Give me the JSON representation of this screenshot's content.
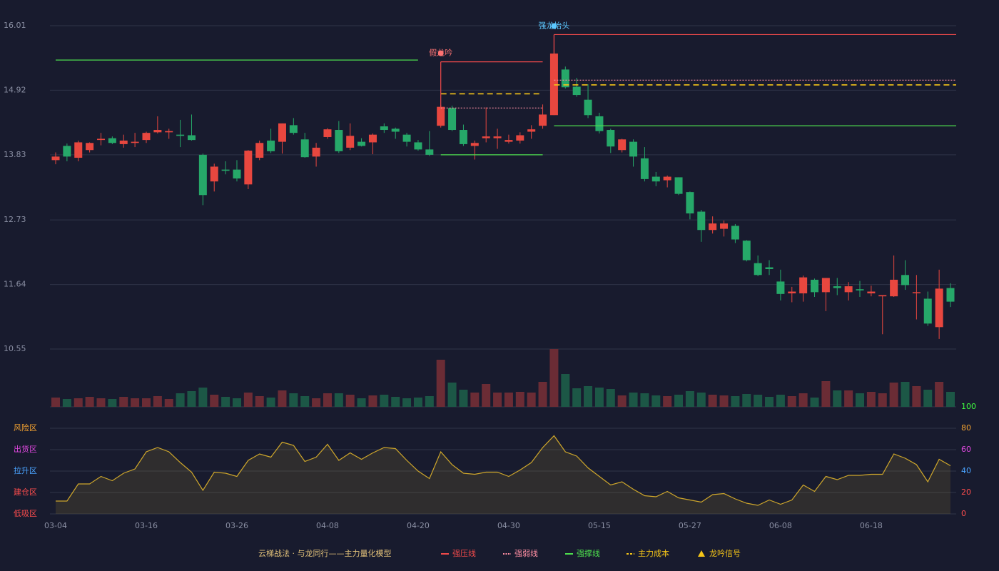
{
  "chart_data": {
    "type": "candlestick",
    "categories": [
      "03-04",
      null,
      null,
      null,
      null,
      null,
      null,
      null,
      "03-16",
      null,
      null,
      null,
      null,
      null,
      null,
      null,
      "03-26",
      null,
      null,
      null,
      null,
      null,
      null,
      null,
      "04-08",
      null,
      null,
      null,
      null,
      null,
      null,
      null,
      "04-20",
      null,
      null,
      null,
      null,
      null,
      null,
      null,
      "04-30",
      null,
      null,
      null,
      null,
      null,
      null,
      null,
      "05-15",
      null,
      null,
      null,
      null,
      null,
      null,
      null,
      "05-27",
      null,
      null,
      null,
      null,
      null,
      null,
      null,
      "06-08",
      null,
      null,
      null,
      null,
      null,
      null,
      null,
      "06-18",
      null,
      null,
      null,
      null,
      null,
      null,
      null
    ],
    "open": [
      13.74,
      13.98,
      13.78,
      13.91,
      14.08,
      14.11,
      14.01,
      14.03,
      14.08,
      14.21,
      14.21,
      14.17,
      14.16,
      13.83,
      13.38,
      13.58,
      13.58,
      13.33,
      13.78,
      14.07,
      14.05,
      14.33,
      14.09,
      13.8,
      14.13,
      14.25,
      13.95,
      14.05,
      14.04,
      14.31,
      14.27,
      14.17,
      14.04,
      13.92,
      14.32,
      14.62,
      14.25,
      13.98,
      14.11,
      14.11,
      14.05,
      14.07,
      14.22,
      14.32,
      14.5,
      15.27,
      14.98,
      14.76,
      14.48,
      14.25,
      13.91,
      14.05,
      13.77,
      13.46,
      13.4,
      13.45,
      13.2,
      12.87,
      12.56,
      12.58,
      12.63,
      12.38,
      12.0,
      11.93,
      11.69,
      11.49,
      11.49,
      11.72,
      11.51,
      11.61,
      11.51,
      11.56,
      11.49,
      11.44,
      11.44,
      11.8,
      11.5,
      11.4,
      10.92,
      11.58
    ],
    "high": [
      13.87,
      14.02,
      14.07,
      14.04,
      14.2,
      14.14,
      14.17,
      14.2,
      14.22,
      14.48,
      14.27,
      14.42,
      14.51,
      13.85,
      13.68,
      13.72,
      13.74,
      13.91,
      14.07,
      14.27,
      14.36,
      14.45,
      14.2,
      14.03,
      14.28,
      14.4,
      14.36,
      14.11,
      14.19,
      14.36,
      14.29,
      14.2,
      14.08,
      14.23,
      14.67,
      14.66,
      14.34,
      14.07,
      14.63,
      14.27,
      14.17,
      14.21,
      14.33,
      14.68,
      15.86,
      15.32,
      15.13,
      15.02,
      14.54,
      14.27,
      14.1,
      14.09,
      13.96,
      13.54,
      13.48,
      13.45,
      13.21,
      12.9,
      12.79,
      12.72,
      12.66,
      12.39,
      12.13,
      12.05,
      11.89,
      11.6,
      11.79,
      11.74,
      11.75,
      11.75,
      11.68,
      11.7,
      11.62,
      11.46,
      12.13,
      12.05,
      11.8,
      11.52,
      11.89,
      11.66
    ],
    "low": [
      13.67,
      13.72,
      13.72,
      13.87,
      13.99,
      14.01,
      13.95,
      13.96,
      14.03,
      14.19,
      14.1,
      13.96,
      14.07,
      12.98,
      13.21,
      13.5,
      13.38,
      13.25,
      13.74,
      13.86,
      13.85,
      14.17,
      13.78,
      13.63,
      14.1,
      13.86,
      13.91,
      13.97,
      13.84,
      14.2,
      14.1,
      13.97,
      13.9,
      13.81,
      14.29,
      14.23,
      13.98,
      13.75,
      14.04,
      13.93,
      14.02,
      14.02,
      14.1,
      14.27,
      14.5,
      14.95,
      14.81,
      14.45,
      14.19,
      13.86,
      13.87,
      13.63,
      13.38,
      13.3,
      13.28,
      13.15,
      12.74,
      12.36,
      12.5,
      12.45,
      12.34,
      12.03,
      11.78,
      11.8,
      11.37,
      11.34,
      11.35,
      11.43,
      11.19,
      11.46,
      11.37,
      11.43,
      11.44,
      10.8,
      11.43,
      11.55,
      11.05,
      10.94,
      10.72,
      11.26
    ],
    "close": [
      13.8,
      13.8,
      14.04,
      14.03,
      14.1,
      14.03,
      14.07,
      14.05,
      14.2,
      14.25,
      14.23,
      14.15,
      14.08,
      13.15,
      13.63,
      13.56,
      13.43,
      13.9,
      14.03,
      13.89,
      14.36,
      14.2,
      13.79,
      13.95,
      14.26,
      13.89,
      14.15,
      13.98,
      14.17,
      14.25,
      14.22,
      14.05,
      13.92,
      13.83,
      14.64,
      14.25,
      14.01,
      14.03,
      14.14,
      14.14,
      14.08,
      14.16,
      14.26,
      14.51,
      15.54,
      14.97,
      14.84,
      14.5,
      14.23,
      13.97,
      14.09,
      13.8,
      13.42,
      13.38,
      13.46,
      13.17,
      12.84,
      12.56,
      12.67,
      12.67,
      12.4,
      12.05,
      11.8,
      11.9,
      11.48,
      11.52,
      11.76,
      11.51,
      11.75,
      11.58,
      11.61,
      11.54,
      11.52,
      11.46,
      11.72,
      11.63,
      11.51,
      10.98,
      11.57,
      11.35
    ],
    "volume": [
      13,
      11,
      12,
      14,
      12,
      11,
      14,
      12,
      12,
      15,
      11,
      19,
      22,
      27,
      17,
      14,
      12,
      20,
      15,
      13,
      23,
      19,
      15,
      12,
      19,
      19,
      17,
      12,
      16,
      17,
      14,
      12,
      13,
      15,
      66,
      34,
      24,
      20,
      32,
      20,
      20,
      21,
      20,
      35,
      81,
      46,
      26,
      29,
      27,
      25,
      16,
      20,
      19,
      16,
      15,
      17,
      22,
      20,
      17,
      16,
      15,
      18,
      17,
      14,
      17,
      15,
      19,
      13,
      36,
      23,
      23,
      19,
      21,
      19,
      34,
      35,
      29,
      24,
      35,
      21
    ],
    "ylim": [
      10.55,
      16.01
    ],
    "yticks": [
      10.55,
      11.64,
      12.73,
      13.83,
      14.92,
      16.01
    ],
    "grid": true,
    "up_color": "#e8473f",
    "down_color": "#26a869",
    "up_volume_color": "#6b2c35",
    "down_volume_color": "#1c5746",
    "support_lines": [
      {
        "value": 15.43,
        "start": 0,
        "end": 33
      }
    ],
    "signals": [
      {
        "label": "假龙吟",
        "color": "#ff7373",
        "start": 34,
        "end": 43,
        "levels": [
          15.4,
          14.62,
          13.83,
          14.86
        ]
      },
      {
        "label": "强龙抬头",
        "color": "#5cc8ff",
        "start": 44,
        "end": 79,
        "levels": [
          15.86,
          15.09,
          14.32,
          15.01
        ]
      }
    ],
    "indicator": {
      "values": [
        12,
        12,
        28,
        28,
        35,
        31,
        38,
        42,
        58,
        62,
        58,
        48,
        39,
        22,
        39,
        38,
        35,
        50,
        56,
        53,
        67,
        64,
        49,
        53,
        65,
        50,
        57,
        51,
        57,
        62,
        61,
        50,
        40,
        33,
        58,
        46,
        38,
        37,
        39,
        39,
        35,
        41,
        48,
        62,
        73,
        58,
        54,
        43,
        35,
        27,
        30,
        23,
        17,
        16,
        21,
        15,
        13,
        11,
        18,
        19,
        14,
        10,
        8,
        13,
        9,
        13,
        27,
        21,
        35,
        32,
        36,
        36,
        37,
        37,
        56,
        52,
        46,
        30,
        51,
        45
      ],
      "color": "#cfa72b",
      "ylim": [
        0,
        100
      ],
      "yticks": [
        0,
        20,
        40,
        60,
        80,
        100
      ],
      "ytick_colors": [
        "#ff4d4d",
        "#ff4d4d",
        "#4aa3ff",
        "#e048e0",
        "#f0a030",
        "#40ff40"
      ],
      "zones": [
        {
          "label": "低吸区",
          "value": 0,
          "color": "#ff4d4d"
        },
        {
          "label": "建仓区",
          "value": 20,
          "color": "#ff4d4d"
        },
        {
          "label": "拉升区",
          "value": 40,
          "color": "#4aa3ff"
        },
        {
          "label": "出货区",
          "value": 60,
          "color": "#e048e0"
        },
        {
          "label": "风险区",
          "value": 80,
          "color": "#f0a030"
        }
      ]
    },
    "model_label": "云梯战法 · 与龙同行——主力量化模型",
    "model_label_color": "#e3c27a",
    "legend": [
      {
        "name": "强压线",
        "color": "#f04a4a",
        "style": "solid"
      },
      {
        "name": "强弱线",
        "color": "#ff8fa3",
        "style": "dotted"
      },
      {
        "name": "强撑线",
        "color": "#4ee04e",
        "style": "solid"
      },
      {
        "name": "主力成本",
        "color": "#f5c518",
        "style": "dashed"
      },
      {
        "name": "龙吟信号",
        "color": "#f5c518",
        "style": "triangle"
      }
    ]
  }
}
